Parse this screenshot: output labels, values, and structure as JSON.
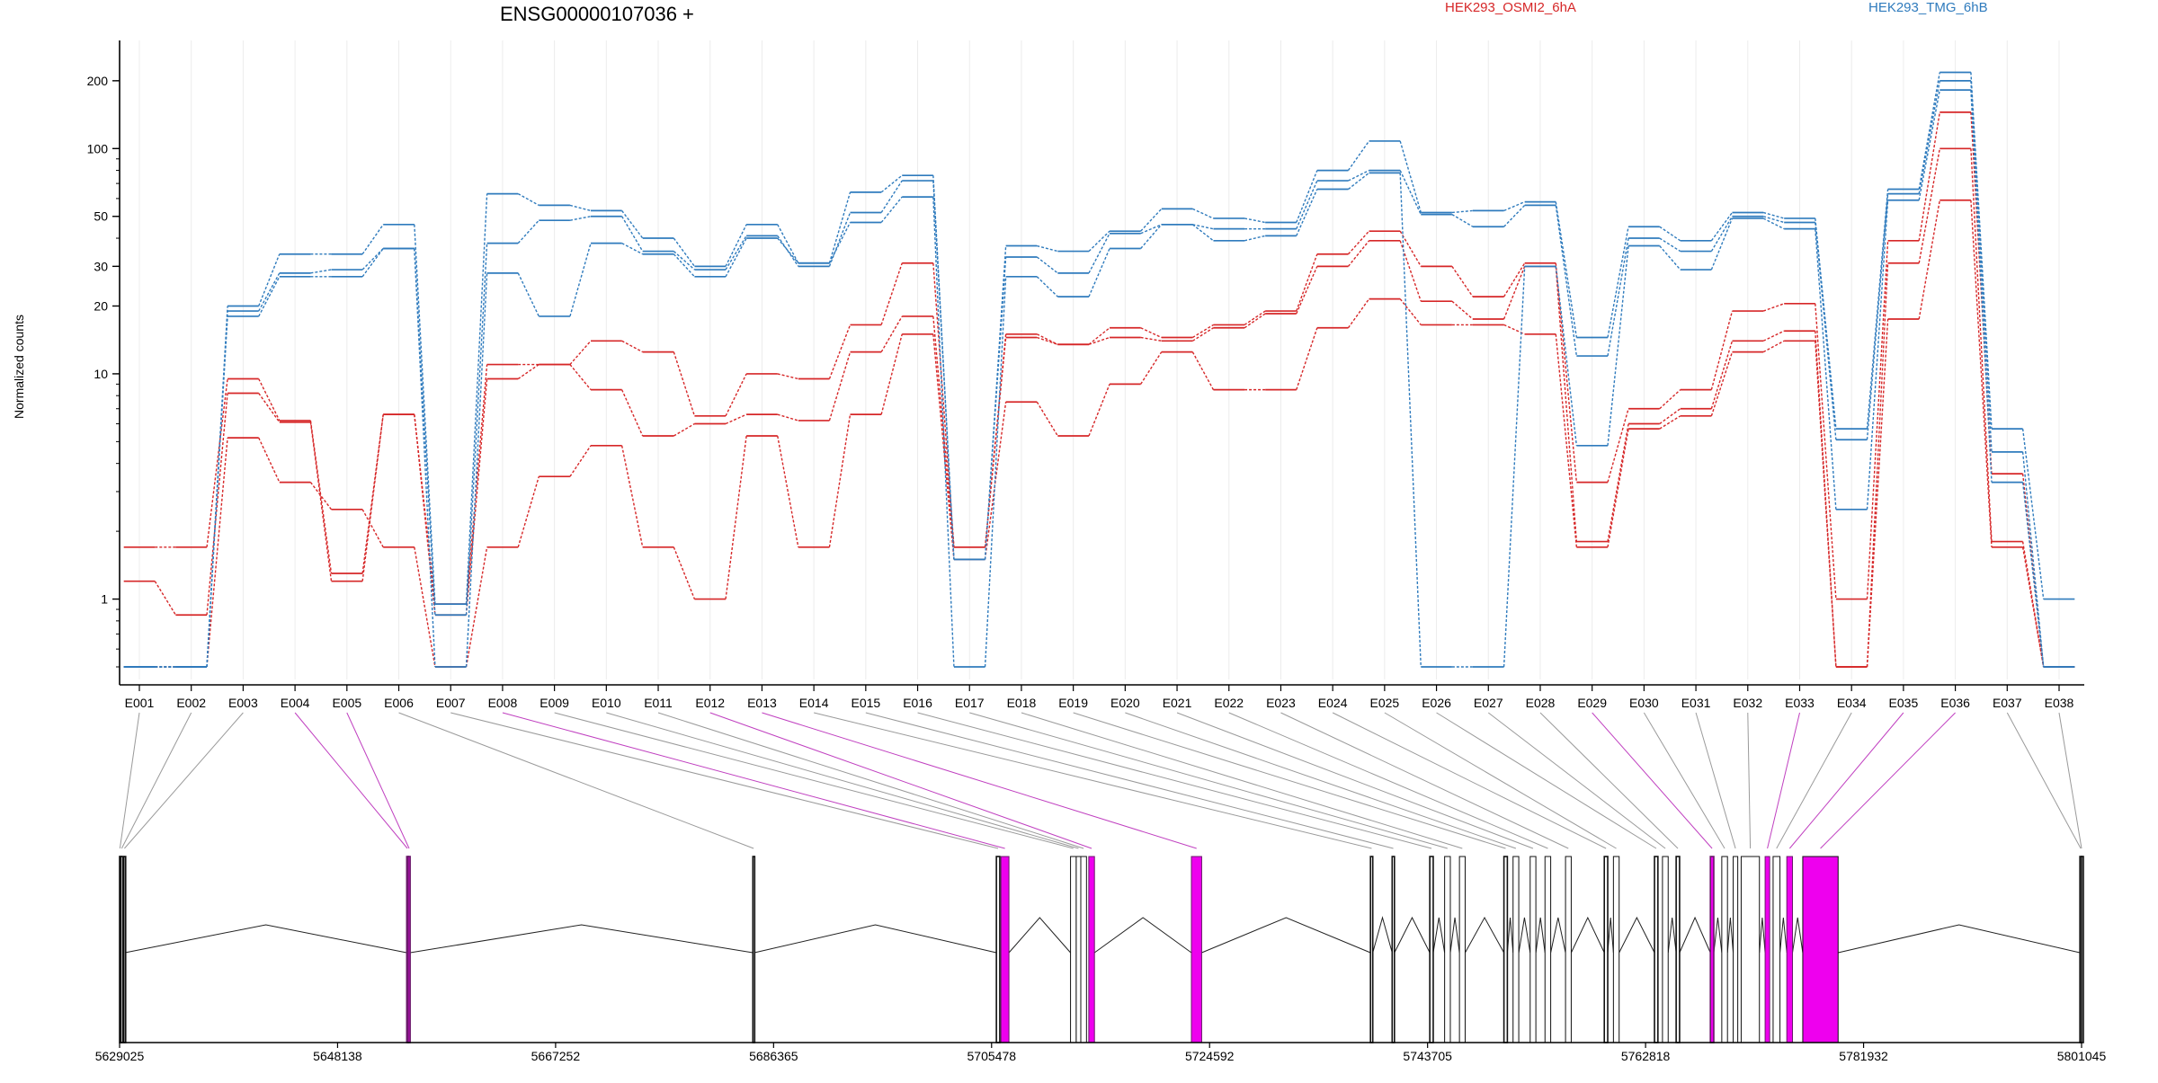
{
  "header": {
    "gene_title": "ENSG00000107036 +",
    "legend": [
      {
        "label": "HEK293_OSMI2_6hA",
        "color": "#d62728"
      },
      {
        "label": "HEK293_TMG_6hB",
        "color": "#2f7bbd"
      }
    ]
  },
  "colors": {
    "red_series": "#d62728",
    "blue_series": "#2f7bbd",
    "highlight": "#ee00ee",
    "connector_gray": "#9a9a9a",
    "connector_magenta": "#c040c0"
  },
  "chart_data": {
    "type": "line",
    "title": "ENSG00000107036 +",
    "ylabel": "Normalized counts",
    "yscale": "log",
    "ylim": [
      0.5,
      260
    ],
    "yticks": [
      200,
      100,
      50,
      30,
      20,
      10,
      1
    ],
    "categories": [
      "E001",
      "E002",
      "E003",
      "E004",
      "E005",
      "E006",
      "E007",
      "E008",
      "E009",
      "E010",
      "E011",
      "E012",
      "E013",
      "E014",
      "E015",
      "E016",
      "E017",
      "E018",
      "E019",
      "E020",
      "E021",
      "E022",
      "E023",
      "E024",
      "E025",
      "E026",
      "E027",
      "E028",
      "E029",
      "E030",
      "E031",
      "E032",
      "E033",
      "E034",
      "E035",
      "E036",
      "E037",
      "E038"
    ],
    "series": [
      {
        "name": "HEK293_OSMI2_6hA",
        "color": "#d62728",
        "values": [
          1.7,
          1.7,
          9.5,
          6.2,
          1.3,
          6.6,
          0.95,
          11,
          11,
          14,
          12.5,
          6.5,
          10,
          9.5,
          16.5,
          31,
          1.7,
          15,
          13.5,
          16,
          14.5,
          16.5,
          19,
          34,
          43,
          30,
          22,
          31,
          3.3,
          7,
          8.5,
          19,
          20.5,
          1,
          39,
          145,
          3.6,
          0.5
        ]
      },
      {
        "name": "HEK293_OSMI2_6hA",
        "color": "#d62728",
        "values": [
          1.2,
          0.85,
          8.2,
          6.1,
          1.2,
          6.6,
          0.85,
          9.5,
          11,
          8.5,
          5.3,
          6,
          6.6,
          6.2,
          12.5,
          18,
          1.7,
          14.5,
          13.5,
          14.5,
          14,
          16,
          18.5,
          30,
          39,
          21,
          17.5,
          30,
          1.8,
          6,
          7,
          14,
          15.5,
          0.5,
          31,
          100,
          1.8,
          0.5
        ]
      },
      {
        "name": "HEK293_OSMI2_6hA",
        "color": "#d62728",
        "values": [
          0.5,
          0.5,
          5.2,
          3.3,
          2.5,
          1.7,
          0.5,
          1.7,
          3.5,
          4.8,
          1.7,
          1,
          5.3,
          1.7,
          6.6,
          15,
          1.5,
          7.5,
          5.3,
          9,
          12.5,
          8.5,
          8.5,
          16,
          21.5,
          16.5,
          16.5,
          15,
          1.7,
          5.7,
          6.5,
          12.5,
          14,
          0.5,
          17.5,
          59,
          1.7,
          0.5
        ]
      },
      {
        "name": "HEK293_TMG_6hB",
        "color": "#2f7bbd",
        "values": [
          0.5,
          0.5,
          20,
          34,
          34,
          46,
          0.95,
          63,
          56,
          53,
          40,
          30,
          46,
          31,
          64,
          76,
          1.5,
          37,
          35,
          43,
          54,
          49,
          47,
          80,
          108,
          52,
          53,
          58,
          14.5,
          45,
          39,
          52,
          49,
          5.7,
          66,
          218,
          5.7,
          1
        ]
      },
      {
        "name": "HEK293_TMG_6hB",
        "color": "#2f7bbd",
        "values": [
          0.5,
          0.5,
          19,
          28,
          29,
          36,
          0.85,
          38,
          48,
          50,
          35,
          29,
          41,
          30,
          52,
          72,
          1.5,
          33,
          28,
          42,
          46,
          44,
          44,
          72,
          80,
          51,
          45,
          56,
          12,
          40,
          35,
          50,
          47,
          5.1,
          63,
          200,
          4.5,
          0.5
        ]
      },
      {
        "name": "HEK293_TMG_6hB",
        "color": "#2f7bbd",
        "values": [
          0.5,
          0.5,
          18,
          27,
          27,
          36,
          0.5,
          28,
          18,
          38,
          34,
          27,
          40,
          31,
          47,
          61,
          0.5,
          27,
          22,
          36,
          46,
          39,
          41,
          66,
          78,
          0.5,
          0.5,
          30,
          4.8,
          37,
          29,
          49,
          44,
          2.5,
          59,
          182,
          3.3,
          0.5
        ]
      }
    ],
    "exon_highlight": [
      "E004",
      "E005",
      "E008",
      "E012",
      "E013",
      "E029",
      "E033",
      "E035",
      "E036"
    ],
    "genomic_ticks": [
      "5629025",
      "5648138",
      "5667252",
      "5686365",
      "5705478",
      "5724592",
      "5743705",
      "5762818",
      "5781932",
      "5801045"
    ],
    "genomic_range": [
      5629025,
      5801045
    ]
  }
}
